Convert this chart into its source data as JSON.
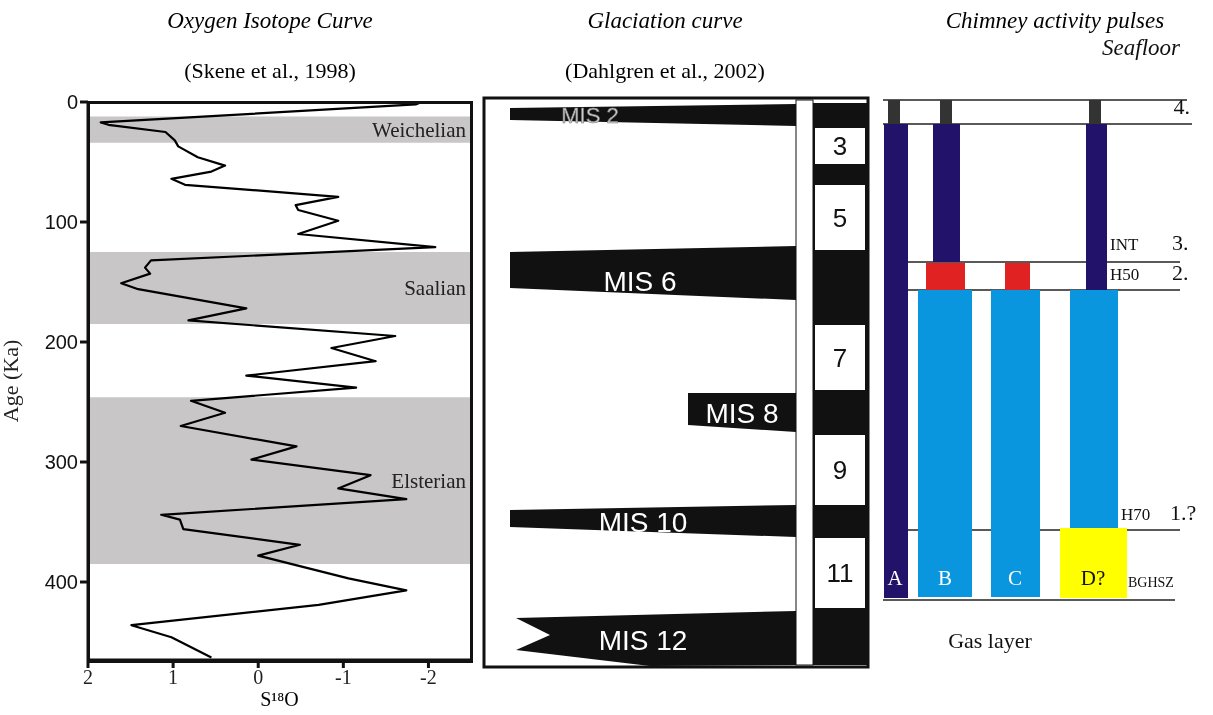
{
  "chart_data": [
    {
      "type": "line",
      "title": "Oxygen Isotope Curve",
      "subtitle": "(Skene et al., 1998)",
      "xlabel": "S¹⁸O",
      "ylabel": "Age (Ka)",
      "x": [
        -1.92,
        -1.85,
        1.85,
        1.76,
        1.09,
        0.98,
        0.94,
        0.71,
        0.39,
        0.55,
        1.02,
        0.86,
        -0.94,
        -0.44,
        -0.47,
        -0.94,
        -0.47,
        -2.08,
        1.26,
        1.33,
        1.27,
        1.61,
        1.41,
        0.14,
        0.82,
        -1.61,
        -0.86,
        -1.38,
        0.14,
        -1.15,
        0.79,
        0.39,
        0.91,
        -0.45,
        0.08,
        -1.32,
        -0.94,
        -1.74,
        1.14,
        0.92,
        0.88,
        -0.49,
        0.0,
        -1.06,
        -1.74,
        -0.71,
        1.49,
        1.02,
        0.55
      ],
      "series": [
        {
          "color": "#000000",
          "values": [
            0,
            2,
            17,
            19,
            25,
            32,
            37,
            46,
            53,
            58,
            64,
            69,
            79,
            86,
            90,
            99,
            110,
            121,
            132,
            138,
            143,
            151,
            156,
            172,
            182,
            195,
            205,
            216,
            228,
            238,
            249,
            259,
            270,
            287,
            298,
            311,
            322,
            331,
            344,
            348,
            356,
            369,
            378,
            397,
            407,
            419,
            436,
            446,
            463
          ]
        }
      ],
      "xlim": [
        2,
        -2.5
      ],
      "xticks": [
        2,
        1,
        0,
        -1,
        -2
      ],
      "ylim": [
        465,
        0
      ],
      "yticks": [
        0,
        100,
        200,
        300,
        400
      ],
      "marker": "none",
      "line_style": "solid",
      "bands": [
        {
          "axis": "y",
          "from": 12,
          "to": 34,
          "label": "Weichelian",
          "color": "#c8c6c6"
        },
        {
          "axis": "y",
          "from": 125,
          "to": 185,
          "label": "Saalian",
          "color": "#c8c6c6"
        },
        {
          "axis": "y",
          "from": 246,
          "to": 385,
          "label": "Elsterian",
          "color": "#c8c6c6"
        }
      ]
    },
    {
      "type": "other",
      "title": "Glaciation curve",
      "subtitle": "(Dahlgren et al., 2002)",
      "annotations": [
        "MIS 2",
        "MIS 6",
        "MIS 8",
        "MIS 10",
        "MIS 12",
        "3",
        "5",
        "7",
        "9",
        "11"
      ]
    },
    {
      "type": "other",
      "title": "Chimney activity pulses",
      "annotations": [
        "Seafloor",
        "4.",
        "INT",
        "3.",
        "H50",
        "2.",
        "H70",
        "1.?",
        "BGHSZ",
        "A",
        "B",
        "C",
        "D?",
        "Gas layer"
      ]
    }
  ]
}
